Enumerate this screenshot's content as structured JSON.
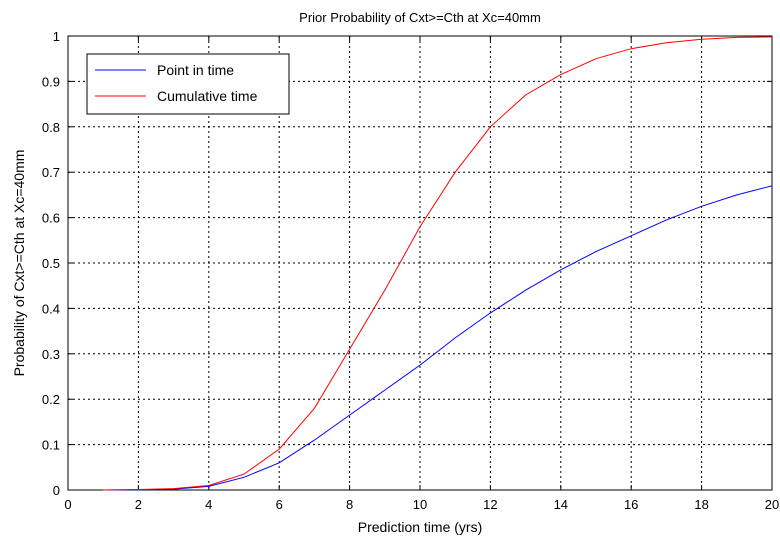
{
  "chart_data": {
    "type": "line",
    "title": "Prior Probability of Cxt>=Cth at Xc=40mm",
    "xlabel": "Prediction time (yrs)",
    "ylabel": "Probability of Cxt>=Cth at Xc=40mm",
    "xlim": [
      0,
      20
    ],
    "ylim": [
      0,
      1
    ],
    "xticks": [
      0,
      2,
      4,
      6,
      8,
      10,
      12,
      14,
      16,
      18,
      20
    ],
    "yticks": [
      0,
      0.1,
      0.2,
      0.3,
      0.4,
      0.5,
      0.6,
      0.7,
      0.8,
      0.9,
      1
    ],
    "grid": "on",
    "legend_position": "top-left",
    "series": [
      {
        "name": "Point in time",
        "color": "#0000ff",
        "x": [
          1,
          2,
          3,
          4,
          5,
          6,
          7,
          8,
          9,
          10,
          11,
          12,
          13,
          14,
          15,
          16,
          17,
          18,
          19,
          20
        ],
        "y": [
          0.0,
          0.0005,
          0.002,
          0.008,
          0.028,
          0.06,
          0.11,
          0.165,
          0.22,
          0.275,
          0.335,
          0.39,
          0.44,
          0.485,
          0.525,
          0.56,
          0.595,
          0.625,
          0.65,
          0.67
        ]
      },
      {
        "name": "Cumulative time",
        "color": "#ff0000",
        "x": [
          1,
          2,
          3,
          4,
          5,
          6,
          7,
          8,
          9,
          10,
          11,
          12,
          13,
          14,
          15,
          16,
          17,
          18,
          19,
          20
        ],
        "y": [
          0.0,
          0.001,
          0.003,
          0.01,
          0.035,
          0.09,
          0.18,
          0.31,
          0.44,
          0.58,
          0.7,
          0.8,
          0.87,
          0.915,
          0.95,
          0.972,
          0.985,
          0.993,
          0.997,
          0.998
        ]
      }
    ]
  }
}
